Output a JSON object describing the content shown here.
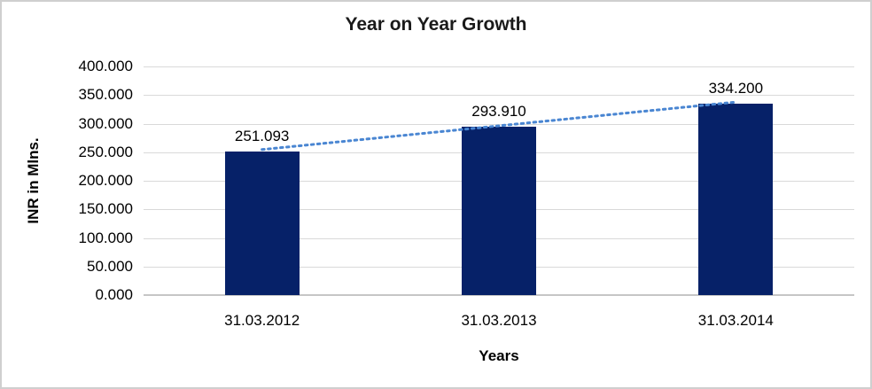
{
  "chart_data": {
    "type": "bar",
    "title": "Year on Year Growth",
    "xlabel": "Years",
    "ylabel": "INR in Mlns.",
    "categories": [
      "31.03.2012",
      "31.03.2013",
      "31.03.2014"
    ],
    "values": [
      251.093,
      293.91,
      334.2
    ],
    "data_labels": [
      "251.093",
      "293.910",
      "334.200"
    ],
    "ylim": [
      0,
      400
    ],
    "ytick_step": 50,
    "ytick_labels": [
      "400.000",
      "350.000",
      "300.000",
      "250.000",
      "200.000",
      "150.000",
      "100.000",
      "50.000",
      "0.000"
    ],
    "grid": true,
    "legend": false,
    "trendline": {
      "type": "linear",
      "style": "dotted"
    },
    "colors": {
      "bar": "#062168",
      "trendline": "#4A86D2",
      "gridline": "#D9D9D9",
      "axis_line": "#C6C6C6",
      "border": "#CFCFCF",
      "text": "#000000"
    }
  }
}
